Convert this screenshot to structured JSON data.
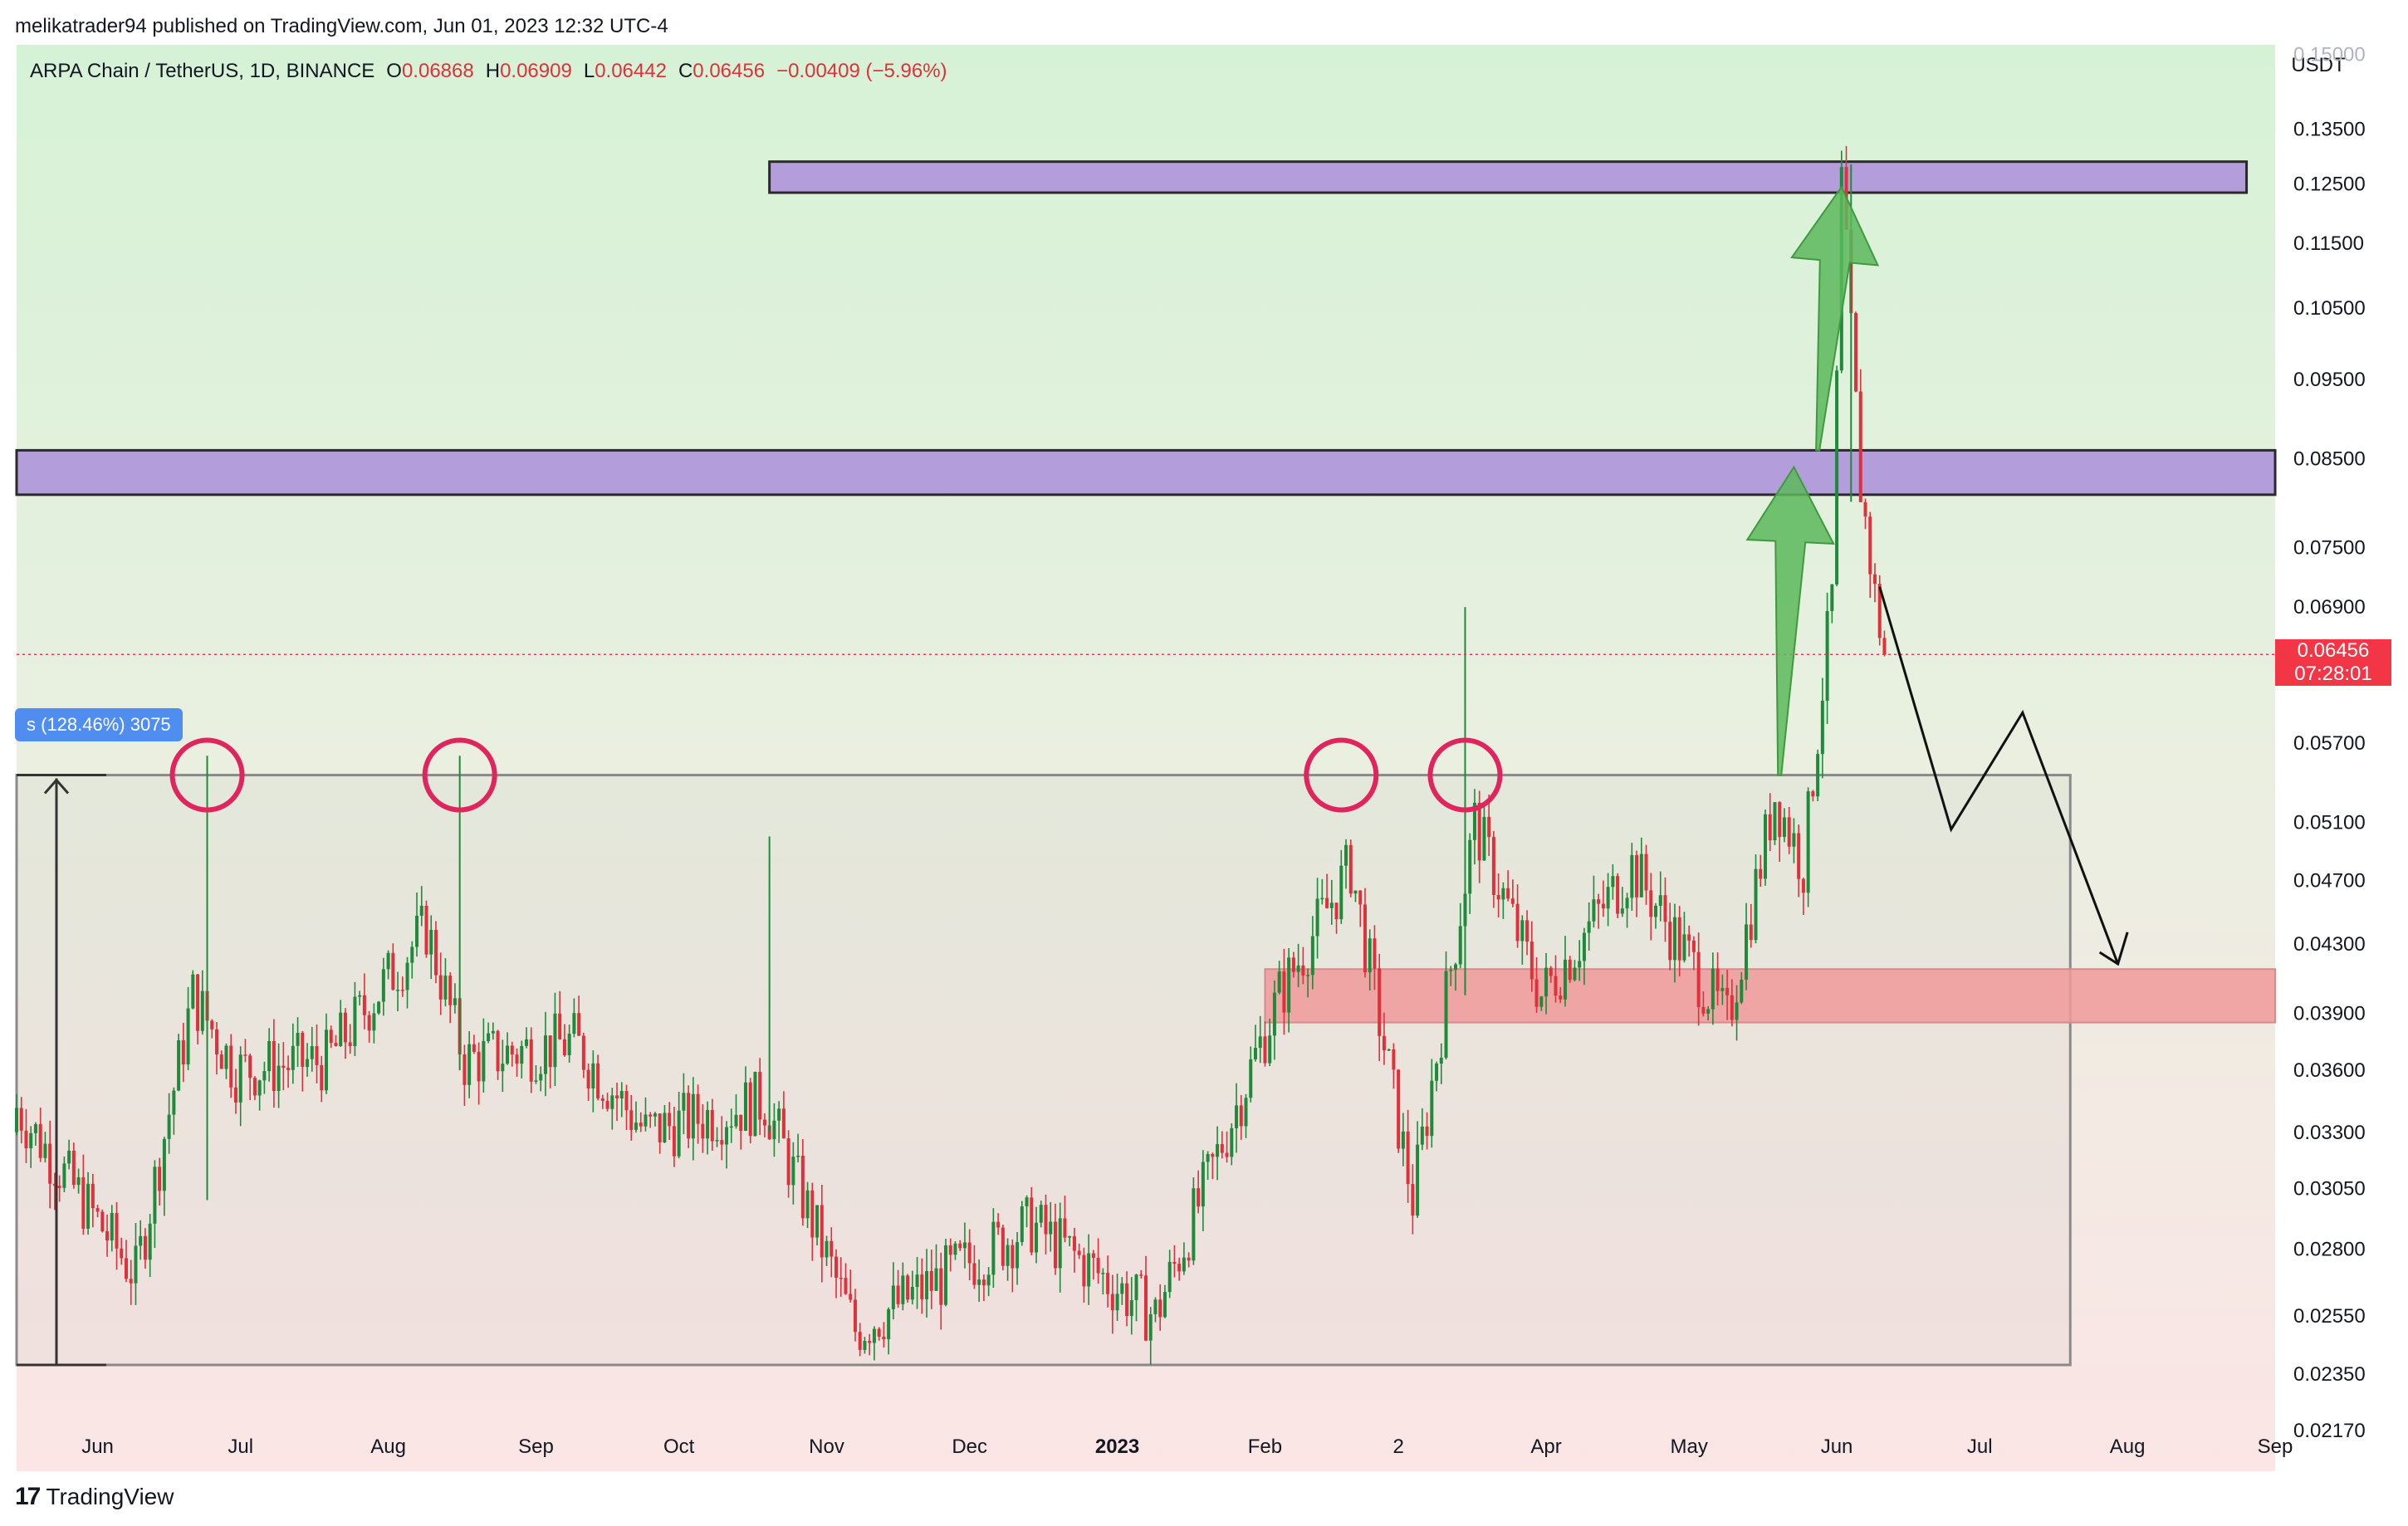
{
  "header": {
    "caption": "melikatrader94 published on TradingView.com, Jun 01, 2023 12:32 UTC-4"
  },
  "legend": {
    "symbol": "ARPA Chain / TetherUS, 1D, BINANCE",
    "o_label": "O",
    "o_value": "0.06868",
    "h_label": "H",
    "h_value": "0.06909",
    "l_label": "L",
    "l_value": "0.06442",
    "c_label": "C",
    "c_value": "0.06456",
    "change": "−0.00409 (−5.96%)"
  },
  "price_tag": {
    "price": "0.06456",
    "countdown": "07:28:01"
  },
  "measure_tag": "s (128.46%) 3075",
  "footer": {
    "brand": "TradingView"
  },
  "chart_data": {
    "type": "candlestick",
    "y_axis_title": "USDT",
    "y_axis_labels": [
      {
        "label": "0.15000",
        "value": 0.15
      },
      {
        "label": "0.13500",
        "value": 0.135
      },
      {
        "label": "0.12500",
        "value": 0.125
      },
      {
        "label": "0.11500",
        "value": 0.115
      },
      {
        "label": "0.10500",
        "value": 0.105
      },
      {
        "label": "0.09500",
        "value": 0.095
      },
      {
        "label": "0.08500",
        "value": 0.085
      },
      {
        "label": "0.07500",
        "value": 0.075
      },
      {
        "label": "0.06900",
        "value": 0.069
      },
      {
        "label": "0.05700",
        "value": 0.057
      },
      {
        "label": "0.05100",
        "value": 0.051
      },
      {
        "label": "0.04700",
        "value": 0.047
      },
      {
        "label": "0.04300",
        "value": 0.043
      },
      {
        "label": "0.03900",
        "value": 0.039
      },
      {
        "label": "0.03600",
        "value": 0.036
      },
      {
        "label": "0.03300",
        "value": 0.033
      },
      {
        "label": "0.03050",
        "value": 0.0305
      },
      {
        "label": "0.02800",
        "value": 0.028
      },
      {
        "label": "0.02550",
        "value": 0.0255
      },
      {
        "label": "0.02350",
        "value": 0.0235
      },
      {
        "label": "0.02170",
        "value": 0.0217
      }
    ],
    "x_axis_labels": [
      {
        "label": "Jun",
        "date": "2022-06-01",
        "bold": false
      },
      {
        "label": "Jul",
        "date": "2022-07-01",
        "bold": false
      },
      {
        "label": "Aug",
        "date": "2022-08-01",
        "bold": false
      },
      {
        "label": "Sep",
        "date": "2022-09-01",
        "bold": false
      },
      {
        "label": "Oct",
        "date": "2022-10-01",
        "bold": false
      },
      {
        "label": "Nov",
        "date": "2022-11-01",
        "bold": false
      },
      {
        "label": "Dec",
        "date": "2022-12-01",
        "bold": false
      },
      {
        "label": "2023",
        "date": "2023-01-01",
        "bold": true
      },
      {
        "label": "Feb",
        "date": "2023-02-01",
        "bold": false
      },
      {
        "label": "2",
        "date": "2023-03-01",
        "bold": false
      },
      {
        "label": "Apr",
        "date": "2023-04-01",
        "bold": false
      },
      {
        "label": "May",
        "date": "2023-05-01",
        "bold": false
      },
      {
        "label": "Jun",
        "date": "2023-06-01",
        "bold": false
      },
      {
        "label": "Jul",
        "date": "2023-07-01",
        "bold": false
      },
      {
        "label": "Aug",
        "date": "2023-08-01",
        "bold": false
      },
      {
        "label": "Sep",
        "date": "2023-09-01",
        "bold": false
      }
    ],
    "x_range": [
      "2022-05-15",
      "2023-09-01"
    ],
    "y_range": [
      0.0205,
      0.152
    ],
    "y_scale": "log",
    "last_price": 0.06456,
    "colors": {
      "up": "#1f8a3a",
      "down": "#e0303a",
      "resistance_zone": "#b39ddb",
      "support_zone": "#ef9a9a",
      "circle": "#e0245e",
      "arrow": "#5cb85c"
    },
    "key_points": [
      {
        "date": "2022-05-15",
        "open": 0.033,
        "close": 0.0345
      },
      {
        "date": "2022-06-10",
        "open": 0.0345,
        "close": 0.027
      },
      {
        "date": "2022-06-22",
        "open": 0.027,
        "close": 0.04
      },
      {
        "date": "2022-07-01",
        "open": 0.04,
        "close": 0.036
      },
      {
        "date": "2022-07-20",
        "open": 0.036,
        "close": 0.0365
      },
      {
        "date": "2022-08-10",
        "open": 0.0365,
        "close": 0.044
      },
      {
        "date": "2022-08-18",
        "open": 0.044,
        "close": 0.0365
      },
      {
        "date": "2022-09-10",
        "open": 0.0365,
        "close": 0.0375
      },
      {
        "date": "2022-09-25",
        "open": 0.0375,
        "close": 0.033
      },
      {
        "date": "2022-10-20",
        "open": 0.033,
        "close": 0.0345
      },
      {
        "date": "2022-11-08",
        "open": 0.0345,
        "close": 0.025
      },
      {
        "date": "2022-12-15",
        "open": 0.025,
        "close": 0.029
      },
      {
        "date": "2023-01-10",
        "open": 0.029,
        "close": 0.0255
      },
      {
        "date": "2023-02-05",
        "open": 0.0255,
        "close": 0.04
      },
      {
        "date": "2023-02-20",
        "open": 0.04,
        "close": 0.048
      },
      {
        "date": "2023-03-05",
        "open": 0.048,
        "close": 0.03
      },
      {
        "date": "2023-03-18",
        "open": 0.03,
        "close": 0.051
      },
      {
        "date": "2023-04-01",
        "open": 0.051,
        "close": 0.04
      },
      {
        "date": "2023-04-20",
        "open": 0.04,
        "close": 0.048
      },
      {
        "date": "2023-05-10",
        "open": 0.048,
        "close": 0.0385
      },
      {
        "date": "2023-05-20",
        "open": 0.0385,
        "close": 0.053
      },
      {
        "date": "2023-05-26",
        "open": 0.053,
        "close": 0.048
      },
      {
        "date": "2023-06-01",
        "open": 0.048,
        "close": 0.07
      },
      {
        "date": "2023-06-03",
        "open": 0.07,
        "close": 0.125
      },
      {
        "date": "2023-06-07",
        "open": 0.125,
        "close": 0.082
      },
      {
        "date": "2023-06-10",
        "open": 0.082,
        "close": 0.07
      },
      {
        "date": "2023-06-12",
        "open": 0.07,
        "close": 0.0646
      }
    ],
    "annotations": {
      "resistance_zones": [
        {
          "from": "2022-10-20",
          "to": "2023-08-26",
          "low": 0.1235,
          "high": 0.129
        },
        {
          "from": "2022-05-15",
          "to": "2023-09-01",
          "low": 0.0808,
          "high": 0.086
        }
      ],
      "support_zone": {
        "from": "2023-02-01",
        "to": "2023-09-01",
        "low": 0.0385,
        "high": 0.0415
      },
      "range_box": {
        "from": "2022-05-15",
        "to": "2023-07-20",
        "low": 0.0238,
        "high": 0.0545
      },
      "circles": [
        {
          "date": "2022-06-24",
          "price": 0.0545
        },
        {
          "date": "2022-08-16",
          "price": 0.0545
        },
        {
          "date": "2023-02-17",
          "price": 0.0545
        },
        {
          "date": "2023-03-15",
          "price": 0.0545
        }
      ],
      "projection_path": [
        {
          "date": "2023-06-10",
          "price": 0.071
        },
        {
          "date": "2023-06-25",
          "price": 0.0505
        },
        {
          "date": "2023-07-10",
          "price": 0.0595
        },
        {
          "date": "2023-07-30",
          "price": 0.0418
        },
        {
          "date": "2023-08-01",
          "price": 0.0435
        }
      ],
      "green_arrows": [
        {
          "from_date": "2023-05-20",
          "from_price": 0.0545,
          "to_date": "2023-05-23",
          "to_price": 0.084
        },
        {
          "from_date": "2023-05-28",
          "from_price": 0.086,
          "to_date": "2023-06-02",
          "to_price": 0.1245
        }
      ]
    }
  }
}
